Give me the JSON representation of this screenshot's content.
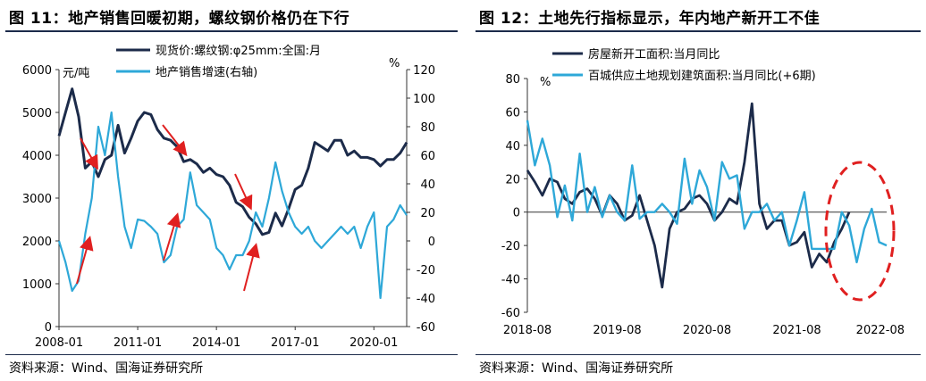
{
  "left": {
    "title": "图 11：地产销售回暖初期，螺纹钢价格仍在下行",
    "source": "资料来源：Wind、国海证券研究所",
    "left_unit": "元/吨",
    "right_unit": "%",
    "chart_data": {
      "type": "line",
      "x_ticks": [
        "2008-01",
        "2011-01",
        "2014-01",
        "2017-01",
        "2020-01"
      ],
      "ylim_left": [
        0,
        6000
      ],
      "yticks_left": [
        0,
        1000,
        2000,
        3000,
        4000,
        5000,
        6000
      ],
      "ylim_right": [
        -60,
        120
      ],
      "yticks_right": [
        -60,
        -40,
        -20,
        0,
        20,
        40,
        60,
        80,
        100,
        120
      ],
      "series": [
        {
          "name": "现货价:螺纹钢:φ25mm:全国:月",
          "axis": "left",
          "color": "#1c2b4a",
          "x": [
            "2008-01",
            "2008-04",
            "2008-07",
            "2008-10",
            "2009-01",
            "2009-04",
            "2009-07",
            "2009-10",
            "2010-01",
            "2010-04",
            "2010-07",
            "2010-10",
            "2011-01",
            "2011-04",
            "2011-07",
            "2011-10",
            "2012-01",
            "2012-04",
            "2012-07",
            "2012-10",
            "2013-01",
            "2013-04",
            "2013-07",
            "2013-10",
            "2014-01",
            "2014-04",
            "2014-07",
            "2014-10",
            "2015-01",
            "2015-04",
            "2015-07",
            "2015-10",
            "2016-01",
            "2016-04",
            "2016-07",
            "2016-10",
            "2017-01",
            "2017-04",
            "2017-07",
            "2017-10",
            "2018-01",
            "2018-04",
            "2018-07",
            "2018-10",
            "2019-01",
            "2019-04",
            "2019-07",
            "2019-10",
            "2020-01",
            "2020-04",
            "2020-07",
            "2020-10",
            "2021-01",
            "2021-04"
          ],
          "values": [
            4450,
            5000,
            5550,
            4900,
            3700,
            3850,
            3500,
            3900,
            4000,
            4700,
            4050,
            4400,
            4800,
            5000,
            4950,
            4600,
            4400,
            4350,
            4200,
            3850,
            3900,
            3800,
            3600,
            3700,
            3550,
            3500,
            3300,
            2900,
            2800,
            2550,
            2400,
            2150,
            2200,
            2650,
            2350,
            2750,
            3200,
            3300,
            3700,
            4300,
            4200,
            4100,
            4350,
            4350,
            4000,
            4100,
            3950,
            3950,
            3900,
            3750,
            3900,
            3900,
            4050,
            4300
          ]
        },
        {
          "name": "地产销售增速(右轴)",
          "axis": "right",
          "color": "#2ea8d8",
          "x": [
            "2008-01",
            "2008-04",
            "2008-07",
            "2008-10",
            "2009-01",
            "2009-04",
            "2009-07",
            "2009-10",
            "2010-01",
            "2010-04",
            "2010-07",
            "2010-10",
            "2011-01",
            "2011-04",
            "2011-07",
            "2011-10",
            "2012-01",
            "2012-04",
            "2012-07",
            "2012-10",
            "2013-01",
            "2013-04",
            "2013-07",
            "2013-10",
            "2014-01",
            "2014-04",
            "2014-07",
            "2014-10",
            "2015-01",
            "2015-04",
            "2015-07",
            "2015-10",
            "2016-01",
            "2016-04",
            "2016-07",
            "2016-10",
            "2017-01",
            "2017-04",
            "2017-07",
            "2017-10",
            "2018-01",
            "2018-04",
            "2018-07",
            "2018-10",
            "2019-01",
            "2019-04",
            "2019-07",
            "2019-10",
            "2020-01",
            "2020-04",
            "2020-07",
            "2020-10",
            "2021-01",
            "2021-04"
          ],
          "values": [
            0,
            -15,
            -35,
            -28,
            5,
            30,
            80,
            60,
            90,
            45,
            10,
            -5,
            15,
            14,
            10,
            5,
            -15,
            -10,
            10,
            15,
            48,
            25,
            20,
            15,
            -5,
            -10,
            -20,
            -10,
            -10,
            0,
            20,
            10,
            30,
            55,
            35,
            20,
            10,
            5,
            10,
            0,
            -5,
            0,
            5,
            10,
            5,
            10,
            -5,
            10,
            20,
            -40,
            10,
            15,
            25,
            18
          ]
        }
      ]
    }
  },
  "right": {
    "title": "图 12：土地先行指标显示，年内地产新开工不佳",
    "source": "资料来源：Wind、国海证券研究所",
    "unit": "%",
    "chart_data": {
      "type": "line",
      "x_ticks": [
        "2018-08",
        "2019-08",
        "2020-08",
        "2021-08",
        "2022-08"
      ],
      "ylim": [
        -60,
        80
      ],
      "yticks": [
        -60,
        -40,
        -20,
        0,
        20,
        40,
        60,
        80
      ],
      "highlight": "dashed-red-ellipse",
      "series": [
        {
          "name": "房屋新开工面积:当月同比",
          "color": "#1c2b4a",
          "x": [
            "2018-08",
            "2018-09",
            "2018-10",
            "2018-11",
            "2018-12",
            "2019-01",
            "2019-02",
            "2019-03",
            "2019-04",
            "2019-05",
            "2019-06",
            "2019-07",
            "2019-08",
            "2019-09",
            "2019-10",
            "2019-11",
            "2019-12",
            "2020-01",
            "2020-02",
            "2020-03",
            "2020-04",
            "2020-05",
            "2020-06",
            "2020-07",
            "2020-08",
            "2020-09",
            "2020-10",
            "2020-11",
            "2020-12",
            "2021-01",
            "2021-02",
            "2021-03",
            "2021-04",
            "2021-05",
            "2021-06",
            "2021-07",
            "2021-08",
            "2021-09",
            "2021-10",
            "2021-11",
            "2021-12",
            "2022-01",
            "2022-02",
            "2022-03"
          ],
          "values": [
            25,
            18,
            10,
            20,
            18,
            8,
            5,
            12,
            14,
            8,
            -2,
            10,
            5,
            -5,
            -2,
            10,
            -5,
            -20,
            -45,
            -10,
            0,
            2,
            8,
            10,
            5,
            -5,
            0,
            8,
            5,
            30,
            65,
            5,
            -10,
            -5,
            -5,
            -20,
            -18,
            -12,
            -33,
            -25,
            -30,
            -18,
            -10,
            0
          ]
        },
        {
          "name": "百城供应土地规划建筑面积:当月同比(+6期)",
          "color": "#2ea8d8",
          "x": [
            "2018-08",
            "2018-09",
            "2018-10",
            "2018-11",
            "2018-12",
            "2019-01",
            "2019-02",
            "2019-03",
            "2019-04",
            "2019-05",
            "2019-06",
            "2019-07",
            "2019-08",
            "2019-09",
            "2019-10",
            "2019-11",
            "2019-12",
            "2020-01",
            "2020-02",
            "2020-03",
            "2020-04",
            "2020-05",
            "2020-06",
            "2020-07",
            "2020-08",
            "2020-09",
            "2020-10",
            "2020-11",
            "2020-12",
            "2021-01",
            "2021-02",
            "2021-03",
            "2021-04",
            "2021-05",
            "2021-06",
            "2021-07",
            "2021-08",
            "2021-09",
            "2021-10",
            "2021-11",
            "2021-12",
            "2022-01",
            "2022-02",
            "2022-03",
            "2022-04",
            "2022-05",
            "2022-06",
            "2022-07",
            "2022-08"
          ],
          "values": [
            55,
            28,
            44,
            28,
            -3,
            16,
            -5,
            35,
            0,
            15,
            -3,
            10,
            0,
            -5,
            28,
            -4,
            0,
            0,
            5,
            0,
            -7,
            32,
            5,
            25,
            15,
            -5,
            30,
            20,
            22,
            -10,
            0,
            0,
            5,
            -5,
            0,
            -20,
            -5,
            12,
            -22,
            -22,
            -22,
            -22,
            0,
            -8,
            -30,
            -10,
            2,
            -18,
            -20
          ]
        }
      ]
    }
  }
}
